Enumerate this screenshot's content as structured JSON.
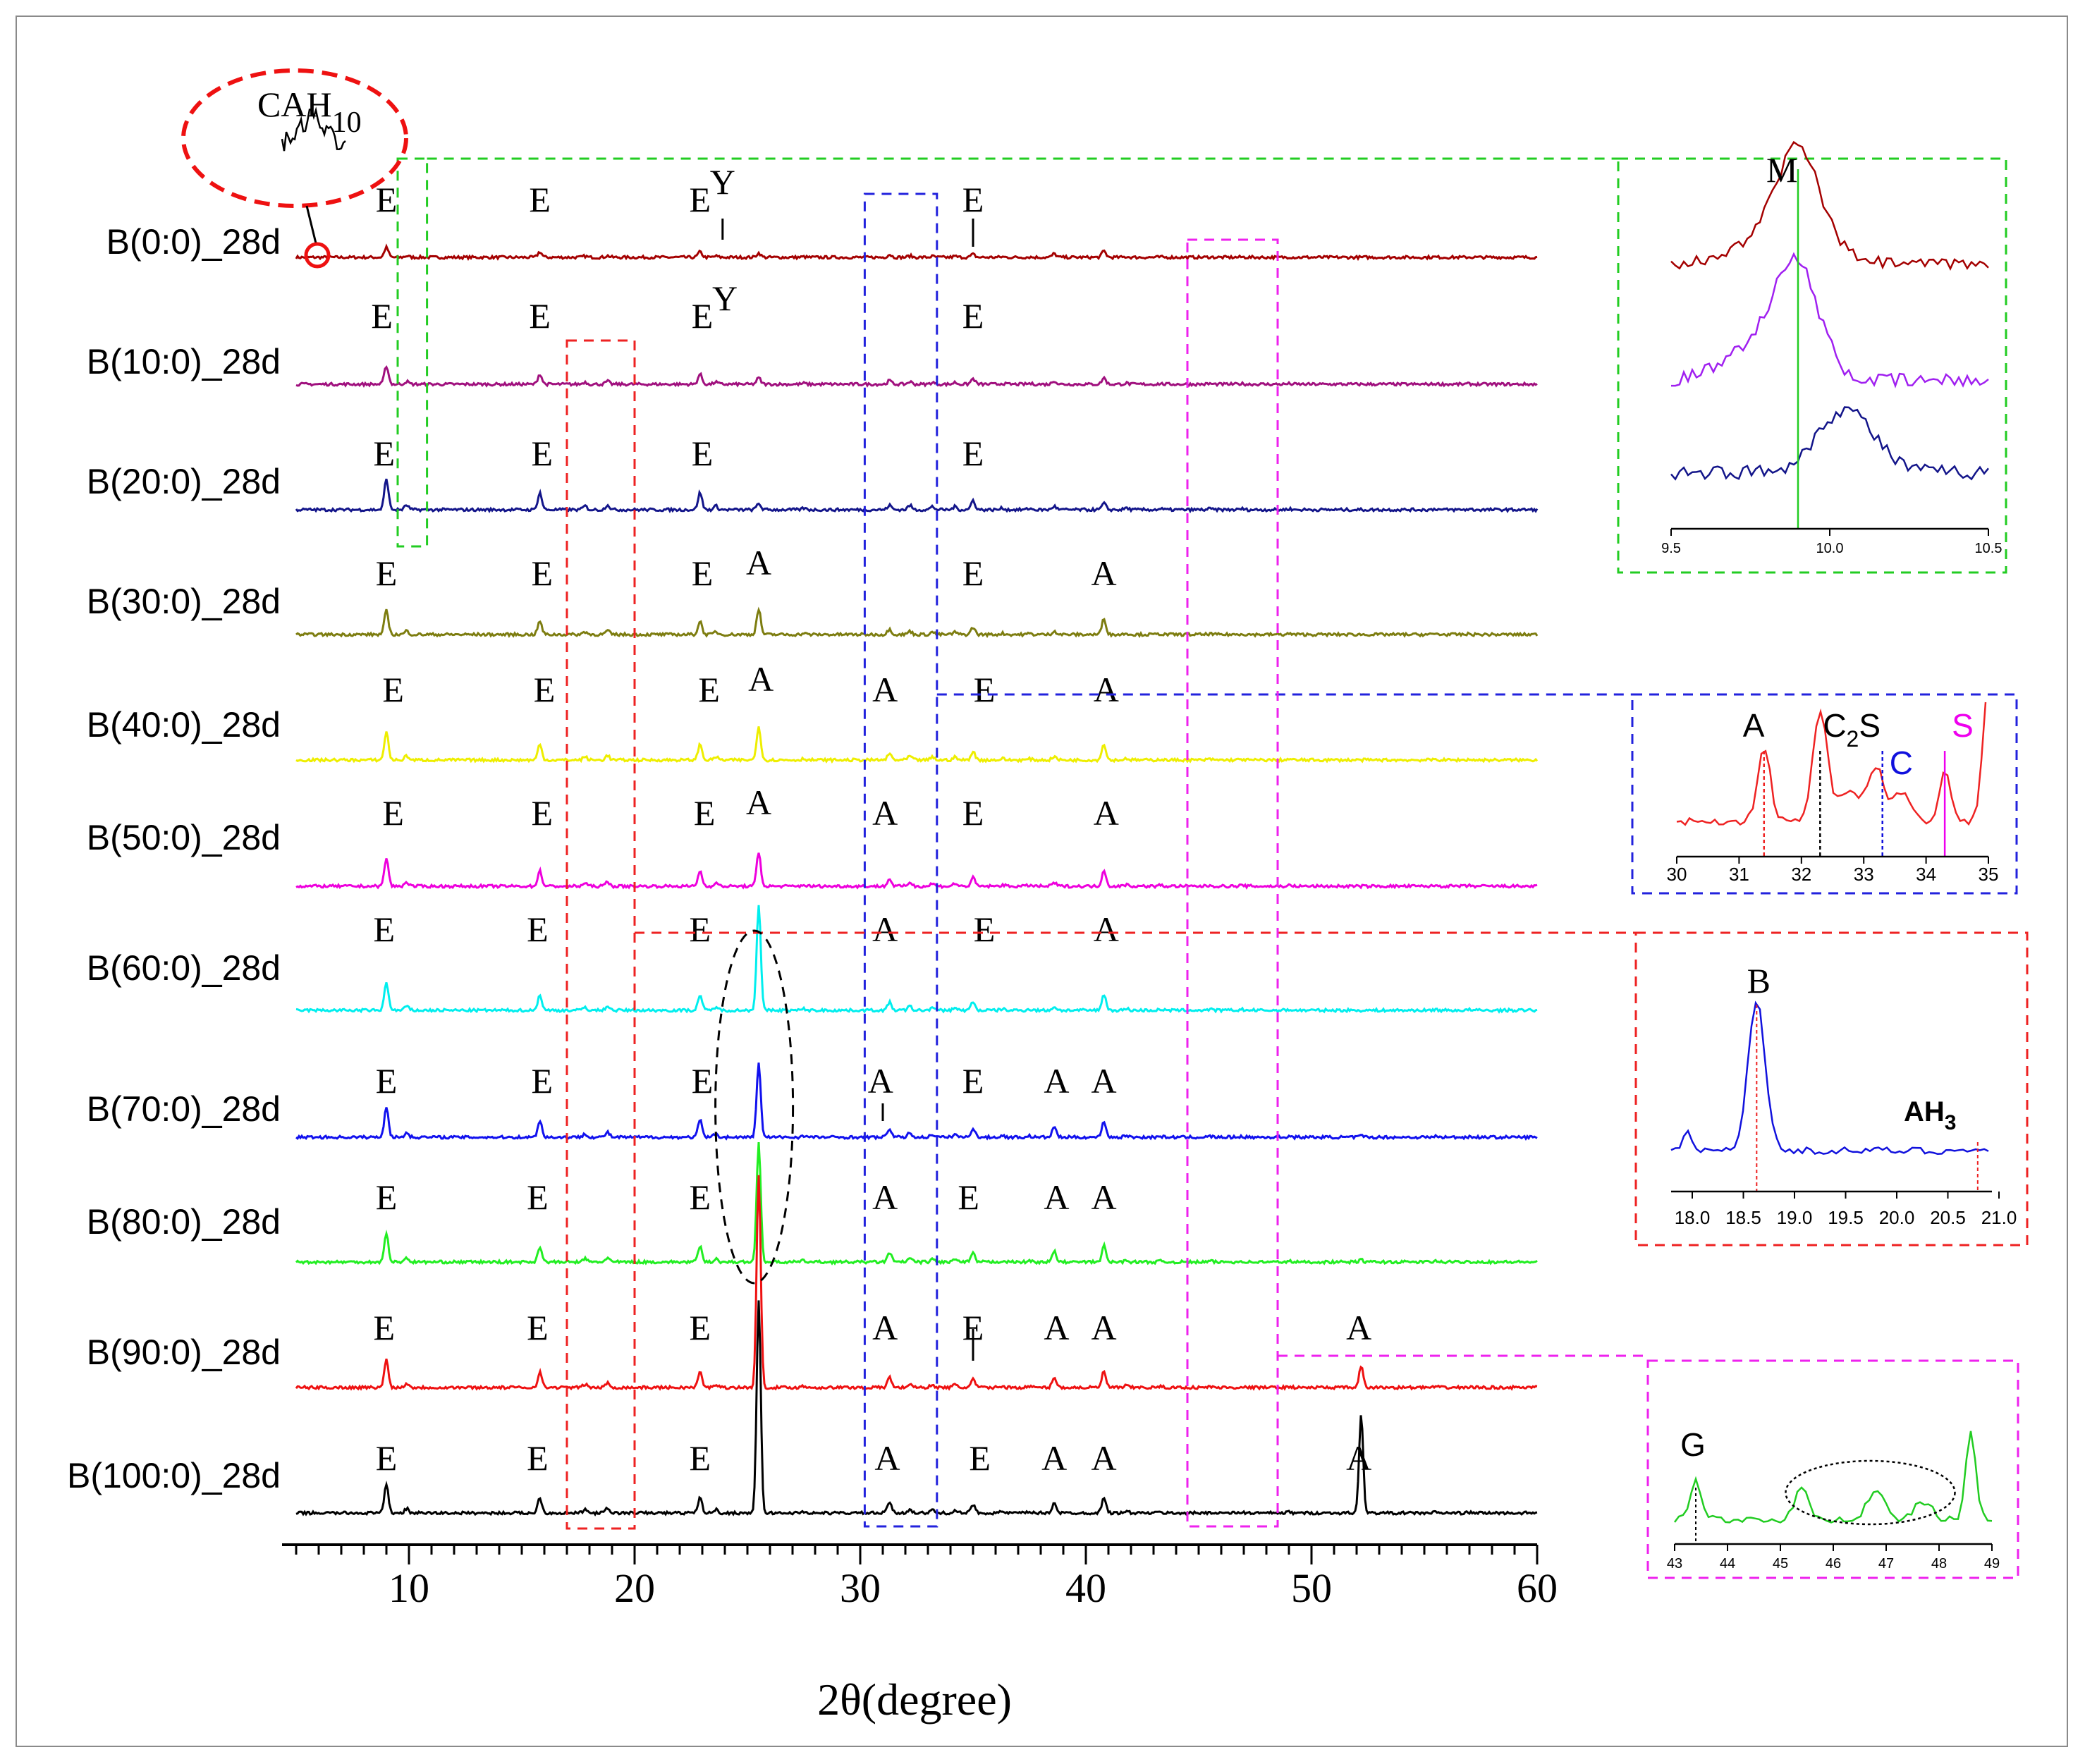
{
  "chart_data": {
    "type": "line",
    "xlabel": "2θ(degree)",
    "xlim": [
      5,
      60
    ],
    "xticks": [
      10,
      20,
      30,
      40,
      50,
      60
    ],
    "series": [
      {
        "name": "B(0:0)_28d",
        "color": "#a40000",
        "peak_labels": [
          {
            "text": "E",
            "x": 9.0
          },
          {
            "text": "E",
            "x": 15.8
          },
          {
            "text": "E",
            "x": 22.9
          },
          {
            "text": "Y",
            "x": 23.9
          },
          {
            "text": "E",
            "x": 35.0
          }
        ]
      },
      {
        "name": "B(10:0)_28d",
        "color": "#a0107e",
        "peak_labels": [
          {
            "text": "E",
            "x": 8.8
          },
          {
            "text": "E",
            "x": 15.8
          },
          {
            "text": "E",
            "x": 23.0
          },
          {
            "text": "Y",
            "x": 24.0
          },
          {
            "text": "E",
            "x": 35.0
          }
        ]
      },
      {
        "name": "B(20:0)_28d",
        "color": "#13158a",
        "peak_labels": [
          {
            "text": "E",
            "x": 8.9
          },
          {
            "text": "E",
            "x": 15.9
          },
          {
            "text": "E",
            "x": 23.0
          },
          {
            "text": "E",
            "x": 35.0
          }
        ]
      },
      {
        "name": "B(30:0)_28d",
        "color": "#7d7d10",
        "peak_labels": [
          {
            "text": "E",
            "x": 9.0
          },
          {
            "text": "E",
            "x": 15.9
          },
          {
            "text": "E",
            "x": 23.0
          },
          {
            "text": "A",
            "x": 25.5
          },
          {
            "text": "E",
            "x": 35.0
          },
          {
            "text": "A",
            "x": 40.8
          }
        ]
      },
      {
        "name": "B(40:0)_28d",
        "color": "#eeee00",
        "peak_labels": [
          {
            "text": "E",
            "x": 9.3
          },
          {
            "text": "E",
            "x": 16.0
          },
          {
            "text": "E",
            "x": 23.3
          },
          {
            "text": "A",
            "x": 25.6
          },
          {
            "text": "A",
            "x": 31.1
          },
          {
            "text": "E",
            "x": 35.5
          },
          {
            "text": "A",
            "x": 40.9
          }
        ]
      },
      {
        "name": "B(50:0)_28d",
        "color": "#ee00dd",
        "peak_labels": [
          {
            "text": "E",
            "x": 9.3
          },
          {
            "text": "E",
            "x": 15.9
          },
          {
            "text": "E",
            "x": 23.1
          },
          {
            "text": "A",
            "x": 25.5
          },
          {
            "text": "A",
            "x": 31.1
          },
          {
            "text": "E",
            "x": 35.0
          },
          {
            "text": "A",
            "x": 40.9
          }
        ]
      },
      {
        "name": "B(60:0)_28d",
        "color": "#00eeee",
        "peak_labels": [
          {
            "text": "E",
            "x": 8.9
          },
          {
            "text": "E",
            "x": 15.7
          },
          {
            "text": "E",
            "x": 22.9
          },
          {
            "text": "A",
            "x": 31.1
          },
          {
            "text": "E",
            "x": 35.5
          },
          {
            "text": "A",
            "x": 40.9
          }
        ]
      },
      {
        "name": "B(70:0)_28d",
        "color": "#1111ee",
        "peak_labels": [
          {
            "text": "E",
            "x": 9.0
          },
          {
            "text": "E",
            "x": 15.9
          },
          {
            "text": "E",
            "x": 23.0
          },
          {
            "text": "A",
            "x": 30.9
          },
          {
            "text": "E",
            "x": 35.0
          },
          {
            "text": "A",
            "x": 38.7
          },
          {
            "text": "A",
            "x": 40.8
          }
        ]
      },
      {
        "name": "B(80:0)_28d",
        "color": "#22ee22",
        "peak_labels": [
          {
            "text": "E",
            "x": 9.0
          },
          {
            "text": "E",
            "x": 15.7
          },
          {
            "text": "E",
            "x": 22.9
          },
          {
            "text": "A",
            "x": 31.1
          },
          {
            "text": "E",
            "x": 34.8
          },
          {
            "text": "A",
            "x": 38.7
          },
          {
            "text": "A",
            "x": 40.8
          }
        ]
      },
      {
        "name": "B(90:0)_28d",
        "color": "#ee1111",
        "peak_labels": [
          {
            "text": "E",
            "x": 8.9
          },
          {
            "text": "E",
            "x": 15.7
          },
          {
            "text": "E",
            "x": 22.9
          },
          {
            "text": "A",
            "x": 31.1
          },
          {
            "text": "E",
            "x": 35.0
          },
          {
            "text": "A",
            "x": 38.7
          },
          {
            "text": "A",
            "x": 40.8
          },
          {
            "text": "A",
            "x": 52.1
          }
        ]
      },
      {
        "name": "B(100:0)_28d",
        "color": "#000000",
        "peak_labels": [
          {
            "text": "E",
            "x": 9.0
          },
          {
            "text": "E",
            "x": 15.7
          },
          {
            "text": "E",
            "x": 22.9
          },
          {
            "text": "A",
            "x": 31.2
          },
          {
            "text": "E",
            "x": 35.3
          },
          {
            "text": "A",
            "x": 38.6
          },
          {
            "text": "A",
            "x": 40.8
          },
          {
            "text": "A",
            "x": 52.1
          }
        ]
      }
    ],
    "annotations": {
      "cah10": {
        "label": "CAH",
        "sub": "10"
      }
    },
    "insets": [
      {
        "id": "green",
        "xlim": [
          9.5,
          10.5
        ],
        "ticks": [
          "9.5",
          "10.0",
          "10.5"
        ],
        "marker_x": 9.9,
        "peak": "M",
        "series_colors": [
          "#a40000",
          "#a020f0",
          "#13158a"
        ]
      },
      {
        "id": "blue",
        "xlim": [
          30,
          35
        ],
        "ticks": [
          "30",
          "31",
          "32",
          "33",
          "34",
          "35"
        ],
        "peaks": [
          {
            "text": "A",
            "x": 31.4,
            "color": "#000000"
          },
          {
            "text": "C",
            "sub": "2",
            "tail": "S",
            "x": 32.3,
            "color": "#000000"
          },
          {
            "text": "C",
            "x": 33.3,
            "color": "#1010dd"
          },
          {
            "text": "S",
            "x": 34.3,
            "color": "#ee00ee"
          }
        ]
      },
      {
        "id": "red",
        "xlim": [
          18.0,
          21.0
        ],
        "ticks": [
          "18.0",
          "18.5",
          "19.0",
          "19.5",
          "20.0",
          "20.5",
          "21.0"
        ],
        "peaks": [
          {
            "text": "B",
            "x": 18.8
          },
          {
            "text": "AH",
            "sub": "3",
            "x": 20.9
          }
        ]
      },
      {
        "id": "magenta",
        "xlim": [
          43,
          49
        ],
        "ticks": [
          "43",
          "44",
          "45",
          "46",
          "47",
          "48",
          "49"
        ],
        "peaks": [
          {
            "text": "G",
            "x": 43.4
          }
        ]
      }
    ]
  }
}
